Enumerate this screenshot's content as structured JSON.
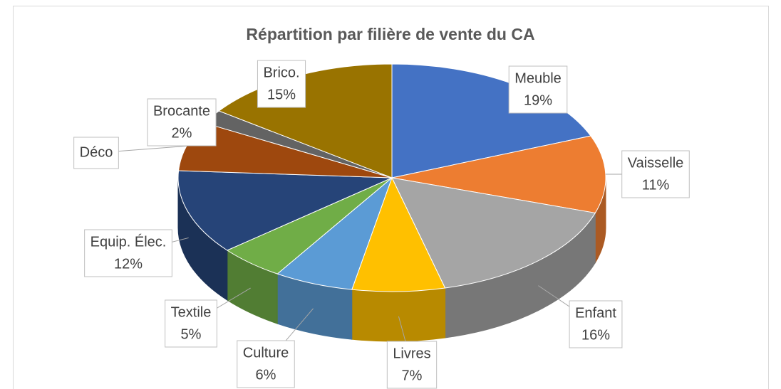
{
  "chart_data": {
    "type": "pie",
    "title": "Répartition par filière de vente du CA",
    "categories": [
      "Meuble",
      "Vaisselle",
      "Enfant",
      "Livres",
      "Culture",
      "Textile",
      "Equip. Élec.",
      "Déco",
      "Brocante",
      "Brico."
    ],
    "values": [
      19,
      11,
      16,
      7,
      6,
      5,
      12,
      7,
      2,
      15
    ],
    "value_labels": [
      "19%",
      "11%",
      "16%",
      "7%",
      "6%",
      "5%",
      "12%",
      null,
      "2%",
      "15%"
    ],
    "colors": [
      "#4472c4",
      "#ed7d31",
      "#a5a5a5",
      "#ffc000",
      "#5b9bd5",
      "#70ad47",
      "#264478",
      "#9e480e",
      "#636363",
      "#997300"
    ]
  }
}
